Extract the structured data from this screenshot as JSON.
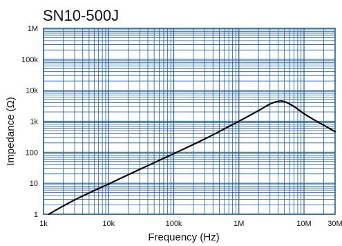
{
  "chart_data": {
    "type": "line",
    "title": "SN10-500J",
    "xlabel": "Frequency (Hz)",
    "ylabel": "Impedance (Ω)",
    "x_scale": "log",
    "y_scale": "log",
    "xlim": [
      1000,
      30000000
    ],
    "ylim": [
      1,
      1000000
    ],
    "x_ticks": [
      {
        "value": 1000,
        "label": "1k"
      },
      {
        "value": 10000,
        "label": "10k"
      },
      {
        "value": 100000,
        "label": "100k"
      },
      {
        "value": 1000000,
        "label": "1M"
      },
      {
        "value": 10000000,
        "label": "10M"
      },
      {
        "value": 30000000,
        "label": "30M"
      }
    ],
    "y_ticks": [
      {
        "value": 1,
        "label": "1"
      },
      {
        "value": 10,
        "label": "10"
      },
      {
        "value": 100,
        "label": "100"
      },
      {
        "value": 1000,
        "label": "1k"
      },
      {
        "value": 10000,
        "label": "10k"
      },
      {
        "value": 100000,
        "label": "100k"
      },
      {
        "value": 1000000,
        "label": "1M"
      }
    ],
    "grid": true,
    "colors": {
      "grid": "#1f5f9e",
      "frame": "#1f5f9e",
      "line": "#000000"
    },
    "series": [
      {
        "x": [
          1200,
          3000,
          10000,
          30000,
          100000,
          300000,
          1000000,
          2000000,
          3000000,
          4000000,
          5000000,
          7000000,
          10000000,
          15000000,
          20000000,
          30000000
        ],
        "y": [
          1,
          2.9,
          9.5,
          28,
          90,
          270,
          1000,
          2200,
          3600,
          4400,
          4300,
          3000,
          1750,
          1050,
          750,
          460
        ]
      }
    ]
  }
}
